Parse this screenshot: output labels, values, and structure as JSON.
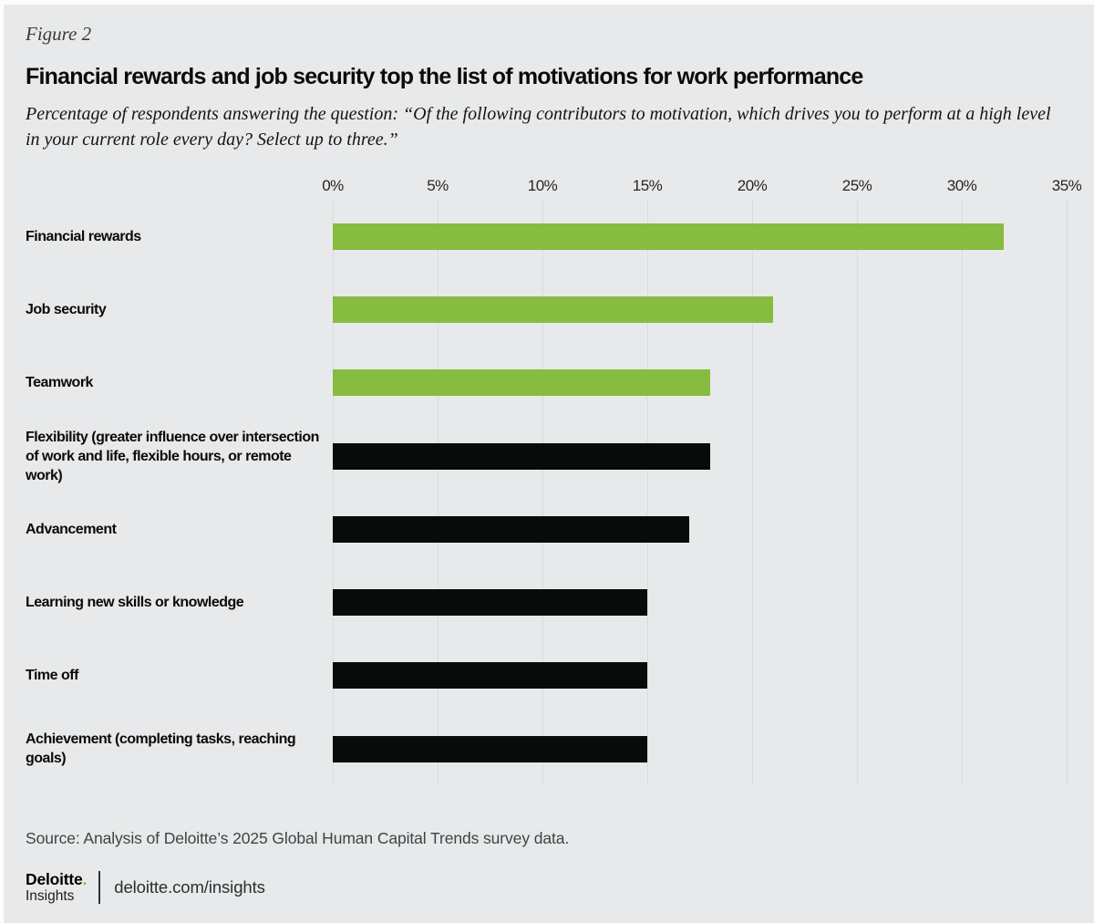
{
  "figure_label": "Figure 2",
  "title": "Financial rewards and job security top the list of motivations for work performance",
  "subtitle": "Percentage of respondents answering the question: “Of the following contributors to motivation, which drives you to perform at a high level in your current role every day? Select up to three.”",
  "chart_data": {
    "type": "bar",
    "orientation": "horizontal",
    "title": "Financial rewards and job security top the list of motivations for work performance",
    "categories": [
      "Financial rewards",
      "Job security",
      "Teamwork",
      "Flexibility (greater influence over intersection of work and life, flexible hours, or remote work)",
      "Advancement",
      "Learning new skills or knowledge",
      "Time off",
      "Achievement (completing tasks, reaching goals)"
    ],
    "values": [
      32,
      21,
      18,
      18,
      17,
      15,
      15,
      15
    ],
    "unit": "%",
    "xlim": [
      0,
      35
    ],
    "x_ticks": [
      "0%",
      "5%",
      "10%",
      "15%",
      "20%",
      "25%",
      "30%",
      "35%"
    ],
    "grid": "vertical",
    "legend": "none",
    "highlight_indices": [
      0,
      1,
      2
    ],
    "colors": {
      "highlight": "#86BC40",
      "default": "#070C0B",
      "background": "#E8E9EA",
      "gridline": "#D9DBDC"
    }
  },
  "source": "Source: Analysis of Deloitte’s 2025 Global Human Capital Trends survey data.",
  "footer": {
    "logo": {
      "brand": "Deloitte",
      "dot": ".",
      "sub": "Insights"
    },
    "link": "deloitte.com/insights",
    "dot_color": "#86BC25"
  }
}
